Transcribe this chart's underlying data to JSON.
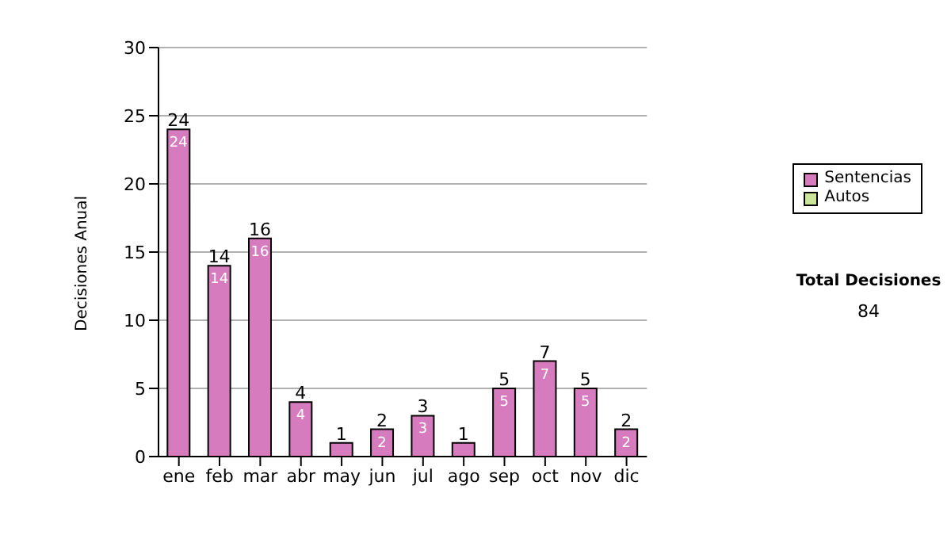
{
  "chart_data": {
    "type": "bar",
    "ylabel": "Decisiones Anual",
    "categories": [
      "ene",
      "feb",
      "mar",
      "abr",
      "may",
      "jun",
      "jul",
      "ago",
      "sep",
      "oct",
      "nov",
      "dic"
    ],
    "series": [
      {
        "name": "Sentencias",
        "color": "#d77bbf",
        "values": [
          24,
          14,
          16,
          4,
          1,
          2,
          3,
          1,
          5,
          7,
          5,
          2
        ],
        "value_labels": [
          "24",
          "14",
          "16",
          "4",
          null,
          "2",
          "3",
          null,
          "5",
          "7",
          "5",
          "2"
        ]
      },
      {
        "name": "Autos",
        "color": "#cce699",
        "values": [
          0,
          0,
          0,
          0,
          0,
          0,
          0,
          0,
          0,
          0,
          0,
          0
        ]
      }
    ],
    "stacked": true,
    "totals": [
      "24",
      "14",
      "16",
      "4",
      "1",
      "2",
      "3",
      "1",
      "5",
      "7",
      "5",
      "2"
    ],
    "ylim": [
      0,
      30
    ],
    "yticks": [
      0,
      5,
      10,
      15,
      20,
      25,
      30
    ],
    "grid": "y",
    "legend": "right",
    "annotations": [
      "Total Decisiones",
      "84"
    ]
  }
}
